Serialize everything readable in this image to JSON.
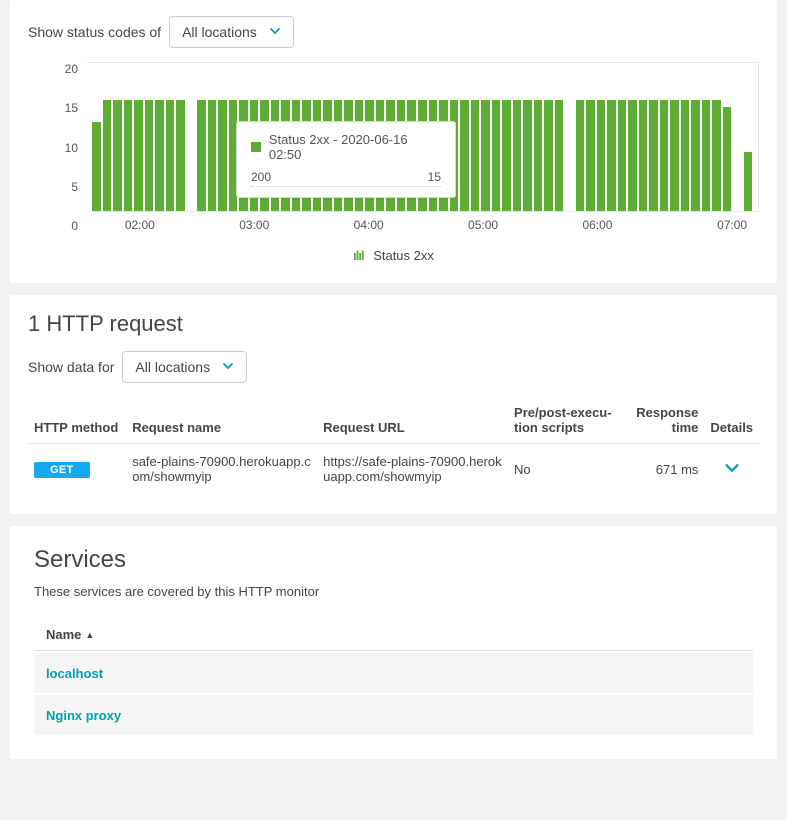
{
  "status_panel": {
    "filter_label": "Show status codes of",
    "selected_location": "All locations",
    "chart": {
      "type": "bar",
      "y_ticks": [
        "20",
        "15",
        "10",
        "5",
        "0"
      ],
      "ylim": [
        0,
        20
      ],
      "x_ticks": [
        {
          "label": "02:00",
          "pos_pct": 8
        },
        {
          "label": "03:00",
          "pos_pct": 25
        },
        {
          "label": "04:00",
          "pos_pct": 42
        },
        {
          "label": "05:00",
          "pos_pct": 59
        },
        {
          "label": "06:00",
          "pos_pct": 76
        },
        {
          "label": "07:00",
          "pos_pct": 96
        }
      ],
      "bar_color": "#5ead35",
      "bars": [
        12,
        15,
        15,
        15,
        15,
        15,
        15,
        15,
        15,
        0,
        15,
        15,
        15,
        15,
        15,
        15,
        15,
        15,
        15,
        15,
        15,
        15,
        15,
        15,
        15,
        15,
        15,
        15,
        15,
        15,
        15,
        15,
        15,
        15,
        15,
        15,
        15,
        15,
        15,
        15,
        15,
        15,
        15,
        15,
        15,
        0,
        15,
        15,
        15,
        15,
        15,
        15,
        15,
        15,
        15,
        15,
        15,
        15,
        15,
        15,
        14,
        0,
        8
      ],
      "tooltip": {
        "title": "Status 2xx - 2020-06-16 02:50",
        "row_label": "200",
        "row_value": "15"
      },
      "legend": "Status 2xx",
      "background_color": "#ffffff",
      "border_color": "#e6e6e6"
    }
  },
  "request_panel": {
    "title": "1 HTTP request",
    "filter_label": "Show data for",
    "selected_location": "All locations",
    "columns": {
      "method": "HTTP method",
      "name": "Request name",
      "url": "Request URL",
      "scripts": "Pre/post-execu­tion scripts",
      "time": "Response time",
      "details": "Details"
    },
    "row": {
      "method_label": "GET",
      "method_color": "#14a8f5",
      "name": "safe-plains-70900.herokuapp.com/showmyip",
      "url": "https://safe-plains-70900.herokuapp.com/showmyip",
      "scripts": "No",
      "time": "671 ms"
    }
  },
  "services_panel": {
    "title": "Services",
    "subtitle": "These services are covered by this HTTP monitor",
    "col_header": "Name",
    "rows": [
      "localhost",
      "Nginx proxy"
    ],
    "link_color": "#00a1b2"
  },
  "colors": {
    "accent": "#00a1b2",
    "bar": "#5ead35",
    "panel_bg": "#ffffff",
    "page_bg": "#f2f2f2"
  }
}
